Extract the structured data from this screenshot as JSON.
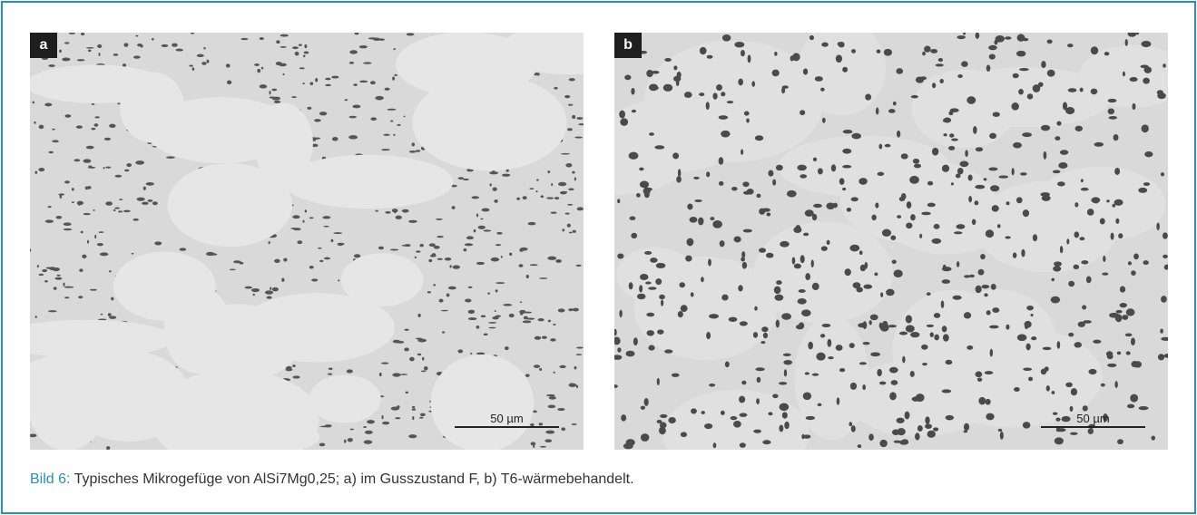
{
  "figure": {
    "panels": [
      {
        "label": "a",
        "scale_bar": "50 µm"
      },
      {
        "label": "b",
        "scale_bar": "50 µm"
      }
    ],
    "caption": {
      "number": "Bild 6:",
      "text": "Typisches Mikrogefüge von AlSi7Mg0,25; a) im Gusszustand F, b) T6-wärmebehandelt."
    }
  }
}
